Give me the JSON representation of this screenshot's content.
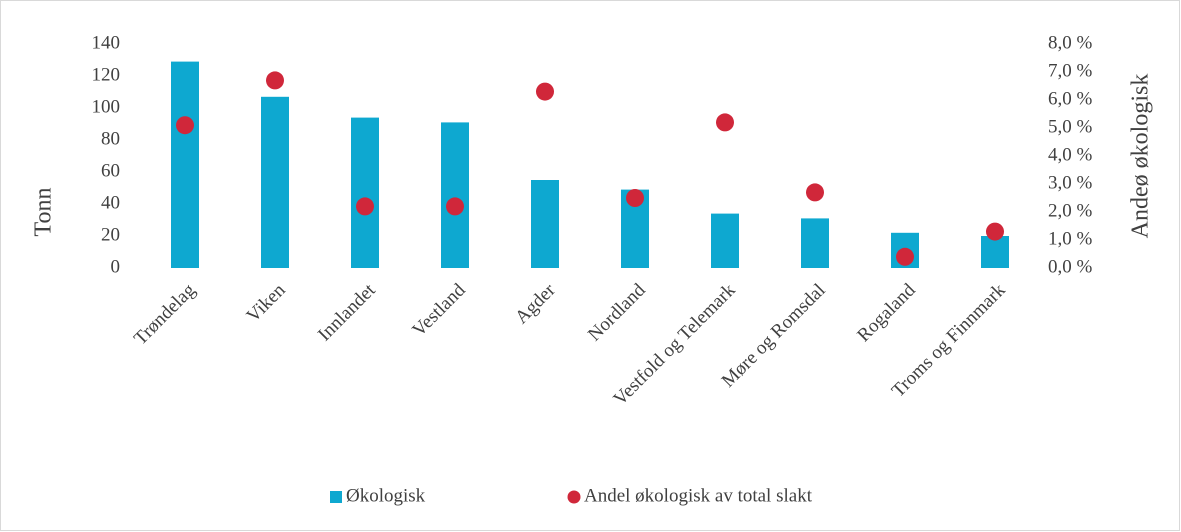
{
  "chart_data": {
    "type": "bar",
    "categories": [
      "Trøndelag",
      "Viken",
      "Innlandet",
      "Vestland",
      "Agder",
      "Nordland",
      "Vestfold og Telemark",
      "Møre og Romsdal",
      "Rogaland",
      "Troms og Finnmark"
    ],
    "series": [
      {
        "name": "Økologisk",
        "type": "bar",
        "color": "#0ea8d0",
        "values": [
          129,
          107,
          94,
          91,
          55,
          49,
          34,
          31,
          22,
          20
        ]
      },
      {
        "name": "Andel økologisk av total slakt",
        "type": "scatter",
        "axis": "y2",
        "color": "#d0273a",
        "values": [
          5.1,
          6.7,
          2.2,
          2.2,
          6.3,
          2.5,
          5.2,
          2.7,
          0.4,
          1.3
        ]
      }
    ],
    "ylabel": "Tonn",
    "y2label": "Andeø økologisk",
    "ylim": [
      0,
      140
    ],
    "yticks": [
      0,
      20,
      40,
      60,
      80,
      100,
      120,
      140
    ],
    "y2lim": [
      0,
      8
    ],
    "y2ticks": [
      {
        "value": 0,
        "label": "0,0 %"
      },
      {
        "value": 1,
        "label": "1,0 %"
      },
      {
        "value": 2,
        "label": "2,0 %"
      },
      {
        "value": 3,
        "label": "3,0 %"
      },
      {
        "value": 4,
        "label": "4,0 %"
      },
      {
        "value": 5,
        "label": "5,0 %"
      },
      {
        "value": 6,
        "label": "6,0 %"
      },
      {
        "value": 7,
        "label": "7,0 %"
      },
      {
        "value": 8,
        "label": "8,0 %"
      }
    ],
    "grid": false,
    "legend": "bottom"
  }
}
